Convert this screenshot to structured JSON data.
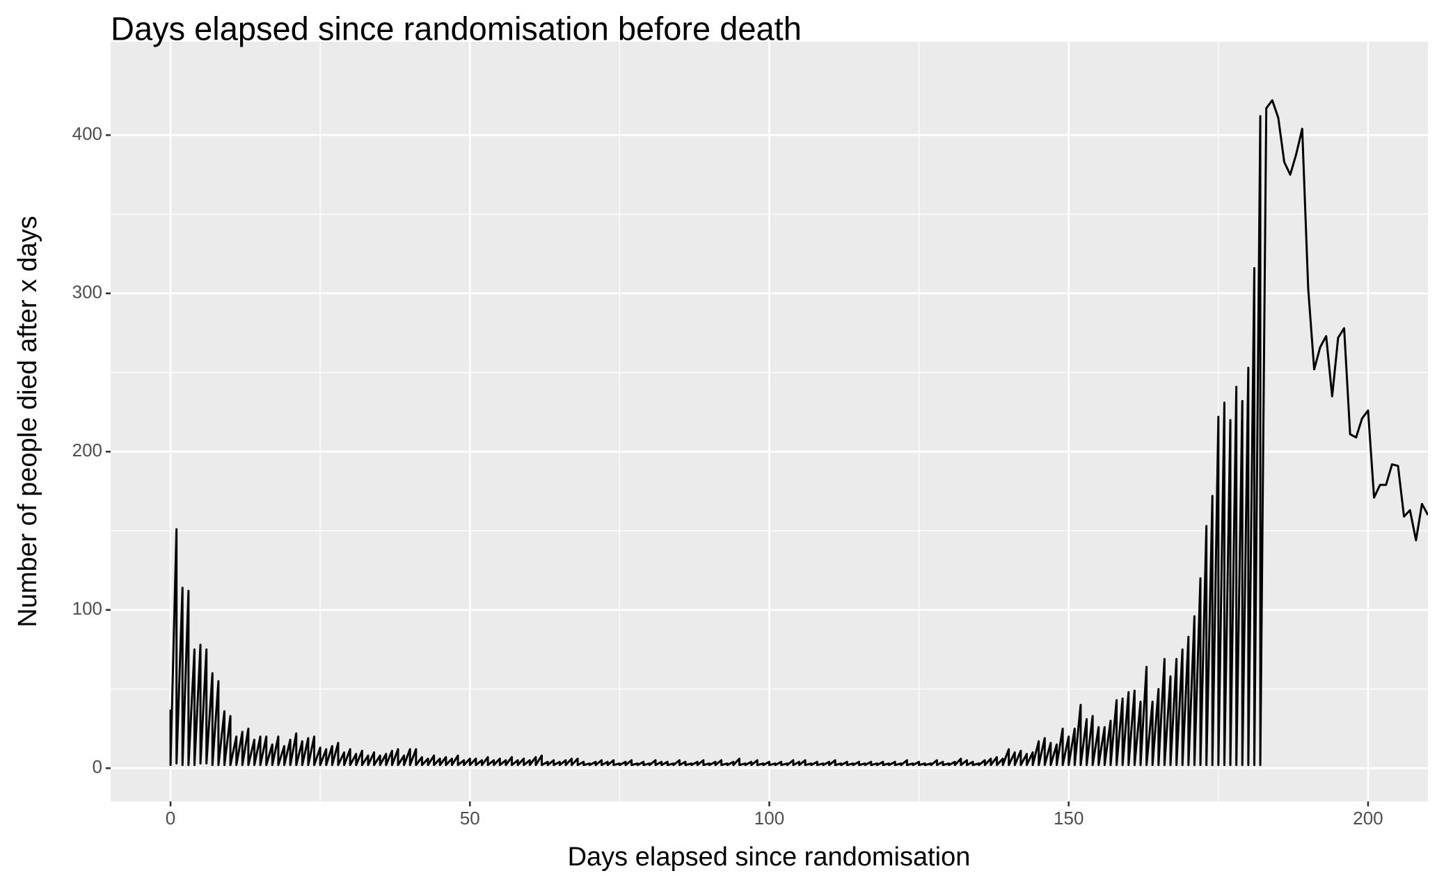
{
  "chart_data": {
    "type": "line",
    "title": "Days elapsed since randomisation before death",
    "x_label": "Days elapsed since randomisation",
    "y_label": "Number of people died after x days",
    "color": "#000000",
    "xlim": [
      -10,
      210
    ],
    "xticks": [
      0,
      50,
      100,
      150,
      200
    ],
    "ylim": [
      -21,
      459
    ],
    "yticks": [
      0,
      100,
      200,
      300,
      400
    ],
    "grid": true,
    "x": [
      0,
      0,
      1,
      1,
      2,
      2,
      3,
      3,
      4,
      4,
      5,
      5,
      6,
      6,
      7,
      7,
      8,
      8,
      9,
      9,
      10,
      10,
      11,
      11,
      12,
      12,
      13,
      13,
      14,
      14,
      15,
      15,
      16,
      16,
      17,
      17,
      18,
      18,
      19,
      19,
      20,
      20,
      21,
      21,
      22,
      22,
      23,
      23,
      24,
      24,
      25,
      25,
      26,
      26,
      27,
      27,
      28,
      28,
      29,
      29,
      30,
      30,
      31,
      31,
      32,
      32,
      33,
      33,
      34,
      34,
      35,
      35,
      36,
      36,
      37,
      37,
      38,
      38,
      39,
      39,
      40,
      40,
      41,
      41,
      42,
      42,
      43,
      43,
      44,
      44,
      45,
      45,
      46,
      46,
      47,
      47,
      48,
      48,
      49,
      49,
      50,
      50,
      51,
      51,
      52,
      52,
      53,
      53,
      54,
      54,
      55,
      55,
      56,
      56,
      57,
      57,
      58,
      58,
      59,
      59,
      60,
      60,
      61,
      61,
      62,
      62,
      63,
      63,
      64,
      64,
      65,
      65,
      66,
      66,
      67,
      67,
      68,
      68,
      69,
      69,
      70,
      70,
      71,
      71,
      72,
      72,
      73,
      73,
      74,
      74,
      75,
      75,
      76,
      76,
      77,
      77,
      78,
      78,
      79,
      79,
      80,
      80,
      81,
      81,
      82,
      82,
      83,
      83,
      84,
      84,
      85,
      85,
      86,
      86,
      87,
      87,
      88,
      88,
      89,
      89,
      90,
      90,
      91,
      91,
      92,
      92,
      93,
      93,
      94,
      94,
      95,
      95,
      96,
      96,
      97,
      97,
      98,
      98,
      99,
      99,
      100,
      100,
      101,
      101,
      102,
      102,
      103,
      103,
      104,
      104,
      105,
      105,
      106,
      106,
      107,
      107,
      108,
      108,
      109,
      109,
      110,
      110,
      111,
      111,
      112,
      112,
      113,
      113,
      114,
      114,
      115,
      115,
      116,
      116,
      117,
      117,
      118,
      118,
      119,
      119,
      120,
      120,
      121,
      121,
      122,
      122,
      123,
      123,
      124,
      124,
      125,
      125,
      126,
      126,
      127,
      127,
      128,
      128,
      129,
      129,
      130,
      130,
      131,
      131,
      132,
      132,
      133,
      133,
      134,
      134,
      135,
      135,
      136,
      136,
      137,
      137,
      138,
      138,
      139,
      139,
      140,
      140,
      141,
      141,
      142,
      142,
      143,
      143,
      144,
      144,
      145,
      145,
      146,
      146,
      147,
      147,
      148,
      148,
      149,
      149,
      150,
      150,
      151,
      151,
      152,
      152,
      153,
      153,
      154,
      154,
      155,
      155,
      156,
      156,
      157,
      157,
      158,
      158,
      159,
      159,
      160,
      160,
      161,
      161,
      162,
      162,
      163,
      163,
      164,
      164,
      165,
      165,
      166,
      166,
      167,
      167,
      168,
      168,
      169,
      169,
      170,
      170,
      171,
      171,
      172,
      172,
      173,
      173,
      174,
      174,
      175,
      175,
      176,
      176,
      177,
      177,
      178,
      178,
      179,
      179,
      180,
      180,
      181,
      181,
      182,
      182,
      183,
      184,
      185,
      186,
      187,
      188,
      189,
      190,
      191,
      192,
      193,
      194,
      195,
      196,
      197,
      198,
      199,
      200,
      201,
      202,
      203,
      204,
      205,
      206,
      207,
      208,
      209,
      210
    ],
    "values": [
      37,
      2,
      151,
      3,
      114,
      2,
      112,
      2,
      75,
      2,
      78,
      3,
      75,
      3,
      60,
      2,
      55,
      2,
      36,
      2,
      33,
      2,
      20,
      2,
      23,
      2,
      25,
      2,
      18,
      2,
      20,
      2,
      20,
      2,
      15,
      2,
      20,
      2,
      14,
      2,
      18,
      2,
      22,
      2,
      17,
      2,
      19,
      2,
      20,
      2,
      13,
      2,
      12,
      2,
      14,
      2,
      16,
      2,
      10,
      2,
      12,
      2,
      9,
      2,
      11,
      2,
      8,
      2,
      10,
      2,
      8,
      2,
      9,
      2,
      11,
      2,
      12,
      2,
      8,
      2,
      12,
      2,
      12,
      2,
      7,
      2,
      6,
      2,
      8,
      2,
      6,
      2,
      7,
      2,
      6,
      2,
      8,
      2,
      5,
      2,
      6,
      2,
      6,
      2,
      5,
      2,
      7,
      2,
      5,
      2,
      6,
      2,
      5,
      2,
      7,
      2,
      5,
      2,
      6,
      2,
      5,
      2,
      7,
      2,
      8,
      2,
      4,
      2,
      5,
      2,
      4,
      2,
      5,
      2,
      6,
      2,
      6,
      2,
      4,
      2,
      3,
      2,
      4,
      2,
      5,
      2,
      4,
      2,
      5,
      2,
      3,
      2,
      4,
      2,
      5,
      2,
      3,
      2,
      4,
      2,
      3,
      2,
      5,
      2,
      4,
      2,
      4,
      2,
      3,
      2,
      5,
      2,
      4,
      2,
      3,
      2,
      4,
      2,
      5,
      2,
      3,
      2,
      4,
      2,
      5,
      2,
      3,
      2,
      4,
      2,
      6,
      2,
      3,
      2,
      4,
      2,
      5,
      2,
      3,
      2,
      4,
      2,
      3,
      2,
      4,
      2,
      3,
      2,
      5,
      2,
      4,
      2,
      5,
      2,
      3,
      2,
      4,
      2,
      3,
      2,
      4,
      2,
      5,
      2,
      3,
      2,
      4,
      2,
      3,
      2,
      4,
      2,
      3,
      2,
      4,
      2,
      3,
      2,
      4,
      2,
      3,
      2,
      4,
      2,
      3,
      2,
      5,
      2,
      3,
      2,
      4,
      2,
      3,
      2,
      3,
      2,
      5,
      2,
      4,
      2,
      3,
      2,
      4,
      2,
      6,
      2,
      5,
      2,
      4,
      2,
      3,
      2,
      5,
      2,
      6,
      2,
      7,
      2,
      6,
      2,
      12,
      2,
      10,
      2,
      11,
      2,
      9,
      2,
      10,
      2,
      17,
      2,
      19,
      2,
      16,
      2,
      15,
      2,
      25,
      2,
      20,
      2,
      25,
      2,
      40,
      2,
      31,
      2,
      33,
      2,
      26,
      2,
      26,
      2,
      30,
      2,
      43,
      2,
      44,
      2,
      48,
      2,
      49,
      2,
      42,
      2,
      64,
      2,
      42,
      2,
      50,
      2,
      69,
      2,
      58,
      2,
      69,
      2,
      75,
      2,
      83,
      2,
      96,
      2,
      120,
      2,
      153,
      2,
      172,
      2,
      222,
      2,
      231,
      2,
      220,
      2,
      241,
      2,
      232,
      2,
      253,
      2,
      316,
      2,
      412,
      2,
      417,
      422,
      411,
      383,
      375,
      388,
      404,
      303,
      252,
      266,
      273,
      235,
      272,
      278,
      211,
      209,
      221,
      226,
      171,
      179,
      179,
      192,
      191,
      159,
      163,
      144,
      167,
      160
    ]
  }
}
